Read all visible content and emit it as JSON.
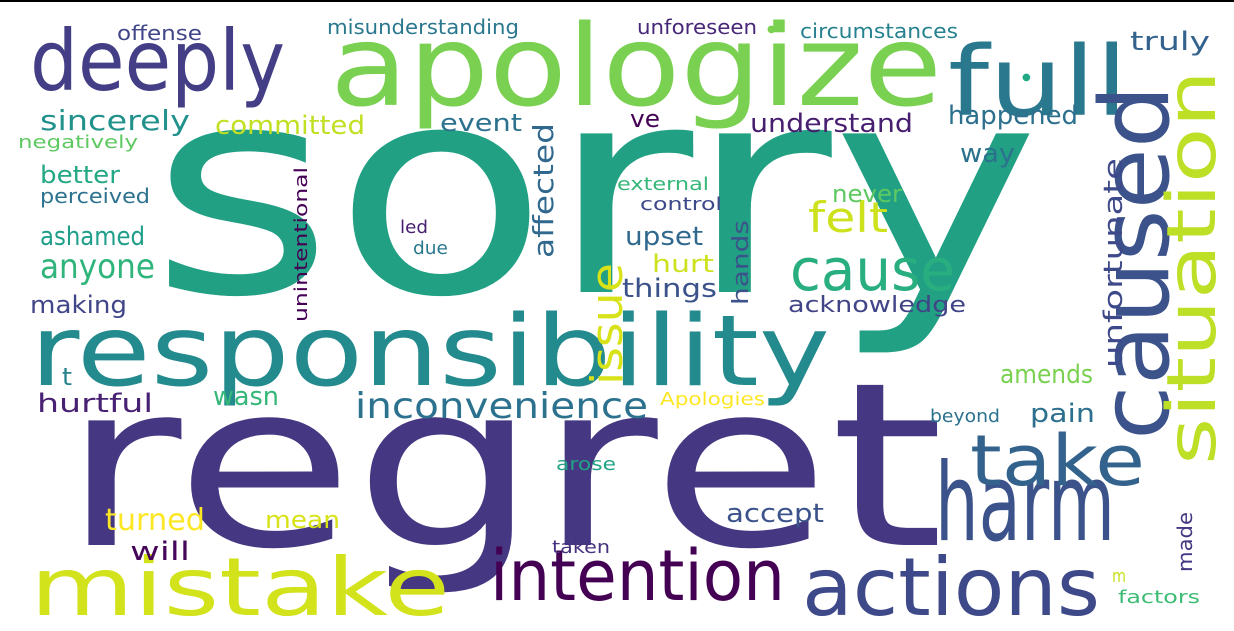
{
  "words": [
    {
      "id": "sorry",
      "text": "sorry",
      "color": "#21a083"
    },
    {
      "id": "regret",
      "text": "regret",
      "color": "#453781"
    },
    {
      "id": "apologize",
      "text": "apologize",
      "color": "#7ad151"
    },
    {
      "id": "responsibility",
      "text": "responsibility",
      "color": "#238a8d"
    },
    {
      "id": "deeply",
      "text": "deeply",
      "color": "#433e85"
    },
    {
      "id": "full",
      "text": "full",
      "color": "#2a788e"
    },
    {
      "id": "caused",
      "text": "caused",
      "color": "#3b528b"
    },
    {
      "id": "situation",
      "text": "situation",
      "color": "#bddf26"
    },
    {
      "id": "harm",
      "text": "harm",
      "color": "#3b528b"
    },
    {
      "id": "take",
      "text": "take",
      "color": "#33638d"
    },
    {
      "id": "cause",
      "text": "cause",
      "color": "#29af7f"
    },
    {
      "id": "mistake",
      "text": "mistake",
      "color": "#d2e21b"
    },
    {
      "id": "intention",
      "text": "intention",
      "color": "#440154"
    },
    {
      "id": "actions",
      "text": "actions",
      "color": "#3e4989"
    },
    {
      "id": "inconvenience",
      "text": "inconvenience",
      "color": "#2c728e"
    },
    {
      "id": "issue",
      "text": "issue",
      "color": "#d8e219"
    },
    {
      "id": "felt",
      "text": "felt",
      "color": "#cde11d"
    },
    {
      "id": "unfortunate",
      "text": "unfortunate",
      "color": "#3e4989"
    },
    {
      "id": "affected",
      "text": "affected",
      "color": "#31688e"
    },
    {
      "id": "anyone",
      "text": "anyone",
      "color": "#2fb47c"
    },
    {
      "id": "acknowledge",
      "text": "acknowledge",
      "color": "#414487"
    },
    {
      "id": "sincerely",
      "text": "sincerely",
      "color": "#21918c"
    },
    {
      "id": "committed",
      "text": "committed",
      "color": "#c2df23"
    },
    {
      "id": "event",
      "text": "event",
      "color": "#2c728e"
    },
    {
      "id": "ve",
      "text": "ve",
      "color": "#440154"
    },
    {
      "id": "understand",
      "text": "understand",
      "color": "#481f70"
    },
    {
      "id": "happened",
      "text": "happened",
      "color": "#2d708e"
    },
    {
      "id": "truly",
      "text": "truly",
      "color": "#33638d"
    },
    {
      "id": "offense",
      "text": "offense",
      "color": "#404688"
    },
    {
      "id": "misunderstanding",
      "text": "misunderstanding",
      "color": "#2a788e"
    },
    {
      "id": "unforeseen",
      "text": "unforeseen",
      "color": "#482878"
    },
    {
      "id": "circumstances",
      "text": "circumstances",
      "color": "#26828e"
    },
    {
      "id": "negatively",
      "text": "negatively",
      "color": "#5ec962"
    },
    {
      "id": "better",
      "text": "better",
      "color": "#22a884"
    },
    {
      "id": "perceived",
      "text": "perceived",
      "color": "#2c728e"
    },
    {
      "id": "ashamed",
      "text": "ashamed",
      "color": "#1f9e89"
    },
    {
      "id": "making",
      "text": "making",
      "color": "#404688"
    },
    {
      "id": "hurtful",
      "text": "hurtful",
      "color": "#482173"
    },
    {
      "id": "t",
      "text": "t",
      "color": "#26828e"
    },
    {
      "id": "wasn",
      "text": "wasn",
      "color": "#35b779"
    },
    {
      "id": "turned",
      "text": "turned",
      "color": "#fde725"
    },
    {
      "id": "mean",
      "text": "mean",
      "color": "#d8e219"
    },
    {
      "id": "will",
      "text": "will",
      "color": "#46075a"
    },
    {
      "id": "unintentional",
      "text": "unintentional",
      "color": "#440154"
    },
    {
      "id": "led",
      "text": "led",
      "color": "#481f70"
    },
    {
      "id": "due",
      "text": "due",
      "color": "#2a788e"
    },
    {
      "id": "external",
      "text": "external",
      "color": "#35b779"
    },
    {
      "id": "control",
      "text": "control",
      "color": "#3e4989"
    },
    {
      "id": "way",
      "text": "way",
      "color": "#2c728e"
    },
    {
      "id": "never",
      "text": "never",
      "color": "#5ec962"
    },
    {
      "id": "upset",
      "text": "upset",
      "color": "#31688e"
    },
    {
      "id": "hurt",
      "text": "hurt",
      "color": "#cde11d"
    },
    {
      "id": "things",
      "text": "things",
      "color": "#3b528b"
    },
    {
      "id": "hands",
      "text": "hands",
      "color": "#3b528b"
    },
    {
      "id": "amends",
      "text": "amends",
      "color": "#7ad151"
    },
    {
      "id": "pain",
      "text": "pain",
      "color": "#2d708e"
    },
    {
      "id": "apologies",
      "text": "Apologies",
      "color": "#fde725"
    },
    {
      "id": "beyond",
      "text": "beyond",
      "color": "#2c728e"
    },
    {
      "id": "accept",
      "text": "accept",
      "color": "#3b528b"
    },
    {
      "id": "arose",
      "text": "arose",
      "color": "#20a386"
    },
    {
      "id": "taken",
      "text": "taken",
      "color": "#46327e"
    },
    {
      "id": "made",
      "text": "made",
      "color": "#453781"
    },
    {
      "id": "m",
      "text": "m",
      "color": "#c8e020"
    },
    {
      "id": "factors",
      "text": "factors",
      "color": "#3dbc74"
    },
    {
      "id": "dot1",
      "text": "●",
      "color": "#7ad151"
    },
    {
      "id": "dot2",
      "text": "●",
      "color": "#22a884"
    }
  ]
}
